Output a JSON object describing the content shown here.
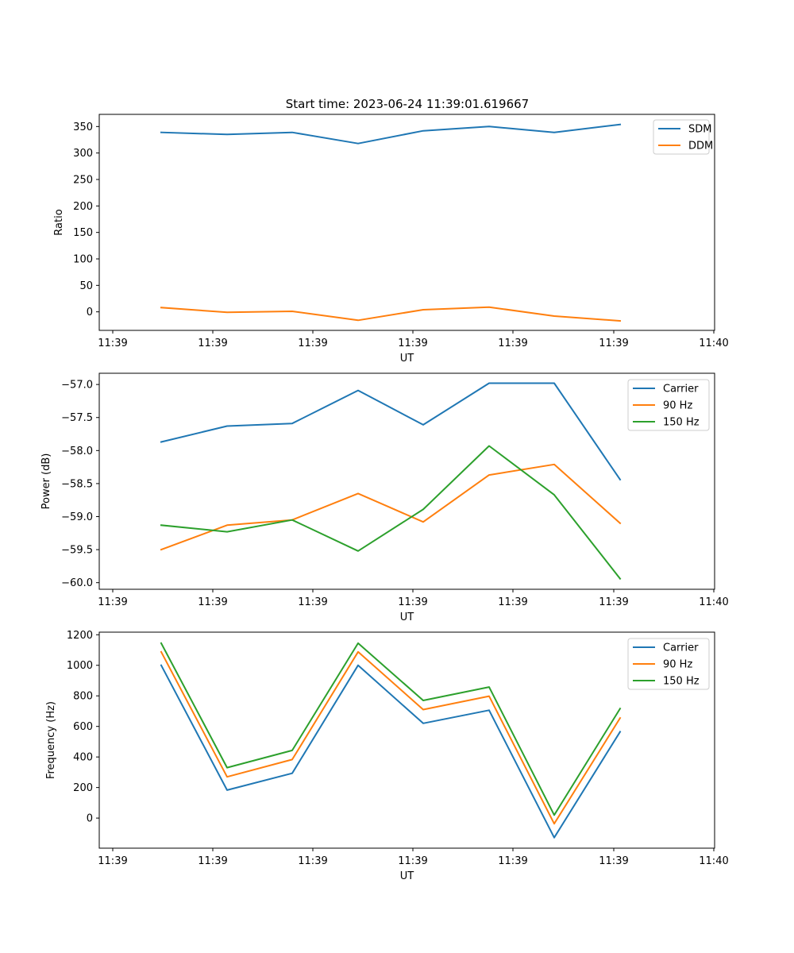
{
  "figure": {
    "title": "Start time: 2023-06-24 11:39:01.619667"
  },
  "chart_data": [
    {
      "type": "line",
      "title": "Start time: 2023-06-24 11:39:01.619667",
      "xlabel": "UT",
      "ylabel": "Ratio",
      "x_ticks": [
        "11:39",
        "11:39",
        "11:39",
        "11:39",
        "11:39",
        "11:39",
        "11:40"
      ],
      "y_ticks": [
        0,
        50,
        100,
        150,
        200,
        250,
        300,
        350
      ],
      "ylim": [
        -35,
        373
      ],
      "grid": false,
      "legend_position": "top-right",
      "series": [
        {
          "name": "SDM",
          "color": "#1f77b4",
          "values": [
            339,
            335,
            339,
            318,
            342,
            350,
            339,
            354
          ]
        },
        {
          "name": "DDM",
          "color": "#ff7f0e",
          "values": [
            8,
            -1,
            1,
            -16,
            4,
            9,
            -8,
            -17
          ]
        }
      ]
    },
    {
      "type": "line",
      "title": "",
      "xlabel": "UT",
      "ylabel": "Power (dB)",
      "x_ticks": [
        "11:39",
        "11:39",
        "11:39",
        "11:39",
        "11:39",
        "11:39",
        "11:40"
      ],
      "y_ticks": [
        -60.0,
        -59.5,
        -59.0,
        -58.5,
        -58.0,
        -57.5,
        -57.0
      ],
      "ylim": [
        -60.1,
        -56.83
      ],
      "grid": false,
      "legend_position": "top-right",
      "series": [
        {
          "name": "Carrier",
          "color": "#1f77b4",
          "values": [
            -57.87,
            -57.63,
            -57.59,
            -57.09,
            -57.61,
            -56.98,
            -56.98,
            -58.44
          ]
        },
        {
          "name": "90 Hz",
          "color": "#ff7f0e",
          "values": [
            -59.5,
            -59.13,
            -59.05,
            -58.65,
            -59.08,
            -58.37,
            -58.21,
            -59.1
          ]
        },
        {
          "name": "150 Hz",
          "color": "#2ca02c",
          "values": [
            -59.13,
            -59.23,
            -59.05,
            -59.52,
            -58.89,
            -57.93,
            -58.67,
            -59.94
          ]
        }
      ]
    },
    {
      "type": "line",
      "title": "",
      "xlabel": "UT",
      "ylabel": "Frequency (Hz)",
      "x_ticks": [
        "11:39",
        "11:39",
        "11:39",
        "11:39",
        "11:39",
        "11:39",
        "11:40"
      ],
      "y_ticks": [
        0,
        200,
        400,
        600,
        800,
        1000,
        1200
      ],
      "ylim": [
        -197,
        1217
      ],
      "grid": false,
      "legend_position": "top-right",
      "series": [
        {
          "name": "Carrier",
          "color": "#1f77b4",
          "values": [
            1000,
            183,
            293,
            1000,
            620,
            706,
            -128,
            565
          ]
        },
        {
          "name": "90 Hz",
          "color": "#ff7f0e",
          "values": [
            1088,
            270,
            383,
            1088,
            710,
            798,
            -37,
            655
          ]
        },
        {
          "name": "150 Hz",
          "color": "#2ca02c",
          "values": [
            1145,
            330,
            443,
            1145,
            770,
            858,
            20,
            717
          ]
        }
      ]
    }
  ]
}
